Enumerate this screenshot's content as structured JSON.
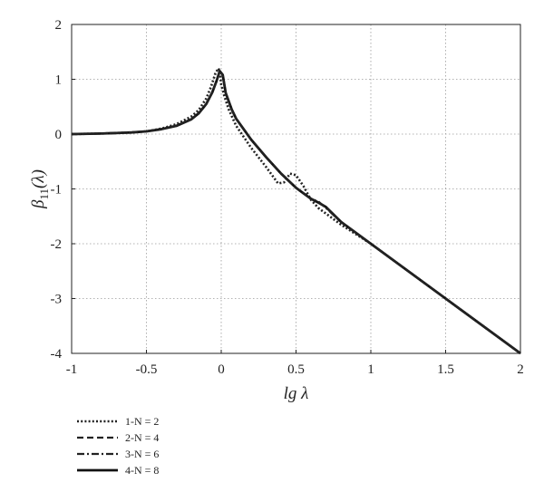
{
  "chart_data": {
    "type": "line",
    "title": "",
    "xlabel": "lg λ",
    "ylabel_main": "β",
    "ylabel_sub": "11",
    "ylabel_arg": "(λ)",
    "xlim": [
      -1,
      2
    ],
    "ylim": [
      -4,
      2
    ],
    "x_ticks": [
      -1,
      -0.5,
      0,
      0.5,
      1,
      1.5,
      2
    ],
    "x_tick_labels": [
      "-1",
      "-0.5",
      "0",
      "0.5",
      "1",
      "1.5",
      "2"
    ],
    "y_ticks": [
      -4,
      -3,
      -2,
      -1,
      0,
      1,
      2
    ],
    "y_tick_labels": [
      "-4",
      "-3",
      "-2",
      "-1",
      "0",
      "1",
      "2"
    ],
    "grid": true,
    "legend_position": "below-left",
    "series": [
      {
        "name": "1-N = 2",
        "style": "dotted",
        "color": "#222222",
        "x": [
          -1,
          -0.8,
          -0.6,
          -0.5,
          -0.4,
          -0.3,
          -0.2,
          -0.15,
          -0.1,
          -0.07,
          -0.04,
          -0.02,
          -0.01,
          0,
          0.02,
          0.05,
          0.1,
          0.2,
          0.3,
          0.38,
          0.42,
          0.46,
          0.5,
          0.55,
          0.6,
          0.65,
          0.7,
          0.75,
          0.8,
          1,
          1.5,
          2
        ],
        "y": [
          0,
          0.01,
          0.03,
          0.05,
          0.1,
          0.18,
          0.32,
          0.44,
          0.65,
          0.85,
          1.1,
          1.2,
          1.15,
          0.9,
          0.7,
          0.45,
          0.15,
          -0.25,
          -0.6,
          -0.9,
          -0.88,
          -0.72,
          -0.75,
          -0.95,
          -1.2,
          -1.35,
          -1.45,
          -1.55,
          -1.65,
          -2,
          -3,
          -4
        ]
      },
      {
        "name": "2-N = 4",
        "style": "dashed",
        "color": "#222222",
        "x": [
          -1,
          -0.8,
          -0.6,
          -0.5,
          -0.4,
          -0.3,
          -0.2,
          -0.15,
          -0.1,
          -0.06,
          -0.03,
          -0.01,
          0.01,
          0.03,
          0.07,
          0.1,
          0.2,
          0.3,
          0.4,
          0.5,
          0.55,
          0.6,
          0.65,
          0.7,
          0.8,
          1,
          1.5,
          2
        ],
        "y": [
          0,
          0.01,
          0.03,
          0.05,
          0.09,
          0.15,
          0.27,
          0.38,
          0.55,
          0.76,
          0.98,
          1.15,
          1.08,
          0.75,
          0.45,
          0.28,
          -0.1,
          -0.42,
          -0.72,
          -0.98,
          -1.08,
          -1.18,
          -1.25,
          -1.33,
          -1.6,
          -2,
          -3,
          -4
        ]
      },
      {
        "name": "3-N = 6",
        "style": "dashdot",
        "color": "#222222",
        "x": [
          -1,
          -0.8,
          -0.6,
          -0.5,
          -0.4,
          -0.3,
          -0.2,
          -0.15,
          -0.1,
          -0.06,
          -0.03,
          -0.01,
          0.01,
          0.03,
          0.07,
          0.1,
          0.2,
          0.3,
          0.4,
          0.5,
          0.55,
          0.6,
          0.65,
          0.7,
          0.8,
          1,
          1.5,
          2
        ],
        "y": [
          0,
          0.01,
          0.03,
          0.05,
          0.09,
          0.15,
          0.27,
          0.38,
          0.55,
          0.76,
          0.98,
          1.15,
          1.08,
          0.75,
          0.45,
          0.28,
          -0.1,
          -0.42,
          -0.72,
          -0.98,
          -1.08,
          -1.18,
          -1.23,
          -1.35,
          -1.6,
          -2,
          -3,
          -4
        ]
      },
      {
        "name": "4-N = 8",
        "style": "solid",
        "color": "#111111",
        "x": [
          -1,
          -0.8,
          -0.6,
          -0.5,
          -0.4,
          -0.3,
          -0.2,
          -0.15,
          -0.1,
          -0.06,
          -0.03,
          -0.01,
          0.01,
          0.03,
          0.07,
          0.1,
          0.2,
          0.3,
          0.4,
          0.5,
          0.55,
          0.6,
          0.65,
          0.7,
          0.8,
          1,
          1.5,
          2
        ],
        "y": [
          0,
          0.01,
          0.03,
          0.05,
          0.09,
          0.15,
          0.27,
          0.38,
          0.55,
          0.76,
          0.98,
          1.15,
          1.08,
          0.75,
          0.45,
          0.28,
          -0.1,
          -0.42,
          -0.72,
          -0.98,
          -1.08,
          -1.18,
          -1.25,
          -1.33,
          -1.6,
          -2,
          -3,
          -4
        ]
      }
    ]
  }
}
